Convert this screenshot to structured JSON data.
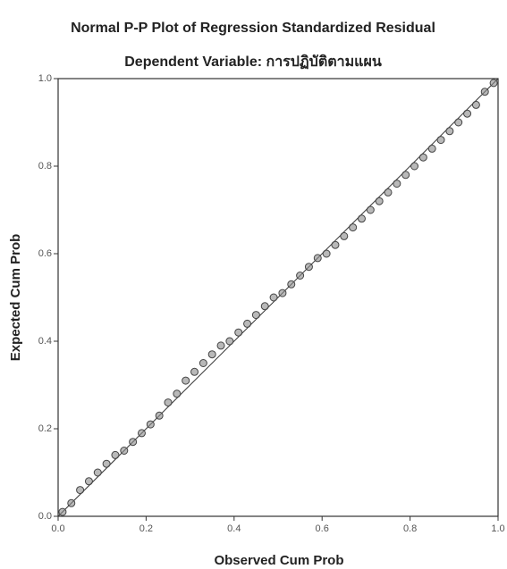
{
  "chart_data": {
    "type": "scatter",
    "title": "Normal P-P Plot of Regression Standardized Residual",
    "subtitle": "Dependent Variable: การปฏิบัติตามแผน",
    "x_label": "Observed Cum Prob",
    "y_label": "Expected Cum Prob",
    "x": [
      0.01,
      0.03,
      0.05,
      0.07,
      0.09,
      0.11,
      0.13,
      0.15,
      0.17,
      0.19,
      0.21,
      0.23,
      0.25,
      0.27,
      0.29,
      0.31,
      0.33,
      0.35,
      0.37,
      0.39,
      0.41,
      0.43,
      0.45,
      0.47,
      0.49,
      0.51,
      0.53,
      0.55,
      0.57,
      0.59,
      0.61,
      0.63,
      0.65,
      0.67,
      0.69,
      0.71,
      0.73,
      0.75,
      0.77,
      0.79,
      0.81,
      0.83,
      0.85,
      0.87,
      0.89,
      0.91,
      0.93,
      0.95,
      0.97,
      0.99
    ],
    "values": [
      0.01,
      0.03,
      0.06,
      0.08,
      0.1,
      0.12,
      0.14,
      0.15,
      0.17,
      0.19,
      0.21,
      0.23,
      0.26,
      0.28,
      0.31,
      0.33,
      0.35,
      0.37,
      0.39,
      0.4,
      0.42,
      0.44,
      0.46,
      0.48,
      0.5,
      0.51,
      0.53,
      0.55,
      0.57,
      0.59,
      0.6,
      0.62,
      0.64,
      0.66,
      0.68,
      0.7,
      0.72,
      0.74,
      0.76,
      0.78,
      0.8,
      0.82,
      0.84,
      0.86,
      0.88,
      0.9,
      0.92,
      0.94,
      0.97,
      0.99
    ],
    "color": "#8a8a8a",
    "xlim": [
      0,
      1
    ],
    "ylim": [
      0,
      1
    ],
    "xticks": [
      {
        "value": 0,
        "label": "0.0"
      },
      0.2,
      0.4,
      0.6,
      0.8,
      {
        "value": 1,
        "label": "1.0"
      }
    ],
    "yticks": [
      {
        "value": 0,
        "label": "0.0"
      },
      0.2,
      0.4,
      0.6,
      0.8,
      {
        "value": 1,
        "label": "1.0"
      }
    ]
  }
}
